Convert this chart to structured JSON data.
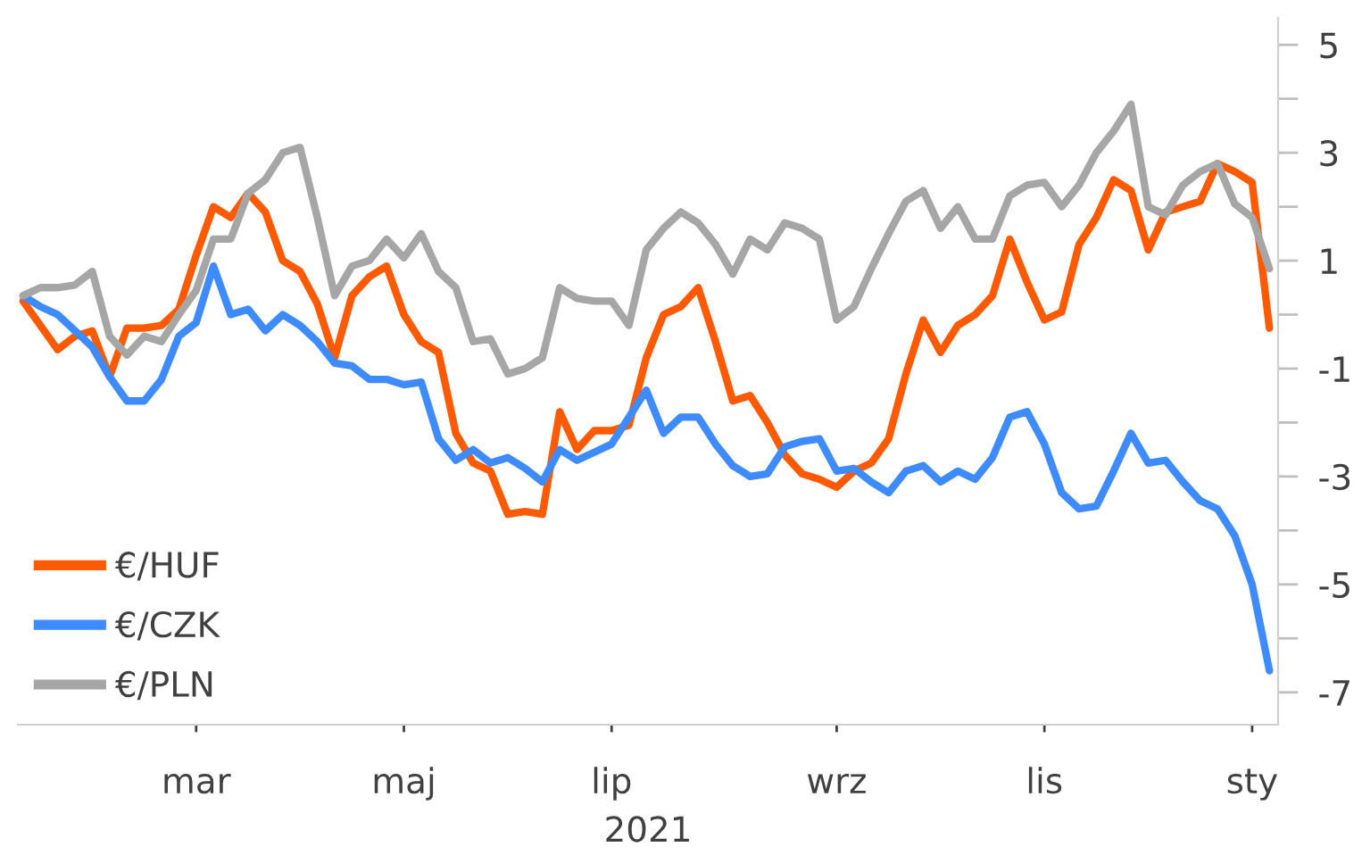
{
  "chart_data": {
    "type": "line",
    "xlabel": "2021",
    "categories": [
      null,
      null,
      null,
      null,
      null,
      null,
      null,
      null,
      null,
      null,
      "mar",
      null,
      null,
      null,
      null,
      null,
      null,
      null,
      null,
      null,
      null,
      null,
      "maj",
      null,
      null,
      null,
      null,
      null,
      null,
      null,
      null,
      null,
      null,
      null,
      "lip",
      null,
      null,
      null,
      null,
      null,
      null,
      null,
      null,
      null,
      null,
      null,
      null,
      "wrz",
      null,
      null,
      null,
      null,
      null,
      null,
      null,
      null,
      null,
      null,
      null,
      "lis",
      null,
      null,
      null,
      null,
      null,
      null,
      null,
      null,
      null,
      null,
      null,
      "sty",
      null
    ],
    "ylim": [
      -7.6,
      5.5
    ],
    "yticks": [
      {
        "value": -7,
        "label": "-7"
      },
      {
        "value": -6,
        "label": null
      },
      {
        "value": -5,
        "label": "-5"
      },
      {
        "value": -4,
        "label": null
      },
      {
        "value": -3,
        "label": "-3"
      },
      {
        "value": -2,
        "label": null
      },
      {
        "value": -1,
        "label": "-1"
      },
      {
        "value": 0,
        "label": null
      },
      1,
      {
        "value": 2,
        "label": null
      },
      3,
      {
        "value": 4,
        "label": null
      },
      5
    ],
    "grid": false,
    "legend": "bottom left",
    "marker": "none",
    "line_style": "solid",
    "series": [
      {
        "name": "€/HUF",
        "color": "#ff5a00",
        "values": [
          0.25,
          -0.2,
          -0.65,
          -0.4,
          -0.3,
          -1.15,
          -0.25,
          -0.25,
          -0.2,
          0.1,
          1.1,
          2.0,
          1.8,
          2.25,
          1.9,
          1.0,
          0.8,
          0.2,
          -0.8,
          0.35,
          0.7,
          0.9,
          0.0,
          -0.5,
          -0.7,
          -2.2,
          -2.75,
          -2.9,
          -3.7,
          -3.65,
          -3.7,
          -1.8,
          -2.5,
          -2.15,
          -2.15,
          -2.05,
          -0.8,
          0.0,
          0.15,
          0.5,
          -0.5,
          -1.6,
          -1.5,
          -2.0,
          -2.6,
          -2.95,
          -3.05,
          -3.2,
          -2.9,
          -2.75,
          -2.3,
          -1.1,
          -0.1,
          -0.7,
          -0.2,
          0.0,
          0.35,
          1.4,
          0.6,
          -0.1,
          0.05,
          1.3,
          1.8,
          2.5,
          2.3,
          1.2,
          1.9,
          2.0,
          2.1,
          2.8,
          2.65,
          2.45,
          -0.25
        ]
      },
      {
        "name": "€/CZK",
        "color": "#3d8bff",
        "values": [
          0.35,
          0.15,
          0.0,
          -0.3,
          -0.6,
          -1.15,
          -1.6,
          -1.6,
          -1.2,
          -0.4,
          -0.15,
          0.9,
          0.0,
          0.1,
          -0.3,
          0.0,
          -0.2,
          -0.5,
          -0.9,
          -0.95,
          -1.2,
          -1.2,
          -1.3,
          -1.25,
          -2.3,
          -2.7,
          -2.5,
          -2.75,
          -2.65,
          -2.85,
          -3.1,
          -2.5,
          -2.7,
          -2.55,
          -2.4,
          -1.9,
          -1.4,
          -2.2,
          -1.9,
          -1.9,
          -2.4,
          -2.8,
          -3.0,
          -2.95,
          -2.45,
          -2.35,
          -2.3,
          -2.9,
          -2.85,
          -3.1,
          -3.3,
          -2.9,
          -2.8,
          -3.1,
          -2.9,
          -3.05,
          -2.65,
          -1.9,
          -1.8,
          -2.4,
          -3.3,
          -3.6,
          -3.55,
          -2.9,
          -2.2,
          -2.75,
          -2.7,
          -3.1,
          -3.45,
          -3.6,
          -4.1,
          -5.0,
          -6.6
        ]
      },
      {
        "name": "€/PLN",
        "color": "#a6a6a6",
        "values": [
          0.35,
          0.5,
          0.5,
          0.55,
          0.8,
          -0.4,
          -0.75,
          -0.4,
          -0.5,
          0.0,
          0.45,
          1.4,
          1.4,
          2.25,
          2.5,
          3.0,
          3.1,
          1.8,
          0.35,
          0.9,
          1.0,
          1.4,
          1.05,
          1.5,
          0.8,
          0.5,
          -0.5,
          -0.45,
          -1.1,
          -1.0,
          -0.8,
          0.5,
          0.3,
          0.25,
          0.25,
          -0.2,
          1.2,
          1.6,
          1.9,
          1.7,
          1.3,
          0.75,
          1.4,
          1.2,
          1.7,
          1.6,
          1.4,
          -0.1,
          0.15,
          0.85,
          1.5,
          2.1,
          2.3,
          1.6,
          2.0,
          1.4,
          1.4,
          2.2,
          2.4,
          2.45,
          2.0,
          2.4,
          3.0,
          3.4,
          3.9,
          2.0,
          1.85,
          2.4,
          2.65,
          2.8,
          2.05,
          1.8,
          0.85
        ]
      }
    ]
  }
}
